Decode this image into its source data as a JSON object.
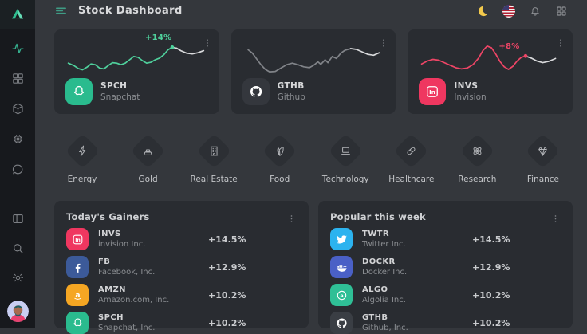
{
  "header": {
    "title": "Stock Dashboard",
    "menu_icon": "menu",
    "theme_icon": "moon",
    "language_icon": "us-flag",
    "notifications_icon": "bell",
    "apps_icon": "apps"
  },
  "sidebar": {
    "logo_icon": "logo-triangle",
    "top_icons": [
      "activity",
      "grid",
      "cube",
      "chip",
      "chat"
    ],
    "active_icon": "activity",
    "bottom_icons": [
      "layout",
      "search",
      "settings"
    ],
    "avatar_icon": "avatar"
  },
  "colors": {
    "background": "#34373c",
    "sidebar": "#17191d",
    "card": "#292c31",
    "accent_green": "#2abb8e",
    "accent_pink": "#ef3760",
    "moon_yellow": "#f2c94c"
  },
  "stock_cards": [
    {
      "ticker": "SPCH",
      "name": "Snapchat",
      "change": "+14%",
      "icon": "snapchat",
      "icon_bg": "#2abb8e",
      "line_color": "#4fd09c",
      "tail_color": "#d9dadc",
      "split": 24,
      "sparkline": [
        [
          0.02,
          0.58
        ],
        [
          0.06,
          0.64
        ],
        [
          0.09,
          0.71
        ],
        [
          0.12,
          0.74
        ],
        [
          0.15,
          0.68
        ],
        [
          0.18,
          0.6
        ],
        [
          0.21,
          0.62
        ],
        [
          0.24,
          0.7
        ],
        [
          0.27,
          0.72
        ],
        [
          0.3,
          0.64
        ],
        [
          0.33,
          0.57
        ],
        [
          0.36,
          0.58
        ],
        [
          0.39,
          0.62
        ],
        [
          0.42,
          0.58
        ],
        [
          0.45,
          0.5
        ],
        [
          0.48,
          0.42
        ],
        [
          0.51,
          0.44
        ],
        [
          0.54,
          0.52
        ],
        [
          0.57,
          0.58
        ],
        [
          0.6,
          0.56
        ],
        [
          0.63,
          0.5
        ],
        [
          0.66,
          0.46
        ],
        [
          0.69,
          0.38
        ],
        [
          0.72,
          0.26
        ],
        [
          0.75,
          0.2
        ],
        [
          0.78,
          0.22
        ],
        [
          0.81,
          0.28
        ],
        [
          0.85,
          0.34
        ],
        [
          0.89,
          0.36
        ],
        [
          0.93,
          0.33
        ],
        [
          0.97,
          0.28
        ]
      ]
    },
    {
      "ticker": "GTHB",
      "name": "Github",
      "change": "",
      "icon": "github",
      "icon_bg": "#34373d",
      "line_color": "#808388",
      "tail_color": "#d9dadc",
      "split": 22,
      "sparkline": [
        [
          0.04,
          0.26
        ],
        [
          0.07,
          0.34
        ],
        [
          0.1,
          0.48
        ],
        [
          0.13,
          0.62
        ],
        [
          0.16,
          0.73
        ],
        [
          0.19,
          0.79
        ],
        [
          0.23,
          0.78
        ],
        [
          0.27,
          0.7
        ],
        [
          0.31,
          0.62
        ],
        [
          0.35,
          0.58
        ],
        [
          0.39,
          0.62
        ],
        [
          0.43,
          0.67
        ],
        [
          0.47,
          0.69
        ],
        [
          0.5,
          0.63
        ],
        [
          0.53,
          0.55
        ],
        [
          0.55,
          0.61
        ],
        [
          0.58,
          0.5
        ],
        [
          0.6,
          0.57
        ],
        [
          0.63,
          0.42
        ],
        [
          0.66,
          0.47
        ],
        [
          0.69,
          0.34
        ],
        [
          0.72,
          0.27
        ],
        [
          0.76,
          0.23
        ],
        [
          0.8,
          0.25
        ],
        [
          0.84,
          0.31
        ],
        [
          0.88,
          0.37
        ],
        [
          0.92,
          0.39
        ],
        [
          0.96,
          0.33
        ]
      ]
    },
    {
      "ticker": "INVS",
      "name": "Invision",
      "change": "+8%",
      "icon": "invision",
      "icon_bg": "#ef3760",
      "line_color": "#ef4566",
      "tail_color": "#d9dadc",
      "split": 21,
      "sparkline": [
        [
          0.02,
          0.6
        ],
        [
          0.06,
          0.53
        ],
        [
          0.1,
          0.49
        ],
        [
          0.14,
          0.51
        ],
        [
          0.18,
          0.57
        ],
        [
          0.22,
          0.63
        ],
        [
          0.26,
          0.69
        ],
        [
          0.3,
          0.72
        ],
        [
          0.34,
          0.7
        ],
        [
          0.38,
          0.62
        ],
        [
          0.42,
          0.46
        ],
        [
          0.45,
          0.28
        ],
        [
          0.48,
          0.17
        ],
        [
          0.51,
          0.21
        ],
        [
          0.54,
          0.36
        ],
        [
          0.57,
          0.54
        ],
        [
          0.6,
          0.67
        ],
        [
          0.63,
          0.73
        ],
        [
          0.66,
          0.66
        ],
        [
          0.69,
          0.53
        ],
        [
          0.72,
          0.44
        ],
        [
          0.75,
          0.41
        ],
        [
          0.79,
          0.46
        ],
        [
          0.83,
          0.53
        ],
        [
          0.87,
          0.57
        ],
        [
          0.91,
          0.54
        ],
        [
          0.96,
          0.47
        ]
      ]
    }
  ],
  "categories": [
    {
      "label": "Energy",
      "icon": "energy"
    },
    {
      "label": "Gold",
      "icon": "gold"
    },
    {
      "label": "Real Estate",
      "icon": "realestate"
    },
    {
      "label": "Food",
      "icon": "food"
    },
    {
      "label": "Technology",
      "icon": "technology"
    },
    {
      "label": "Healthcare",
      "icon": "healthcare"
    },
    {
      "label": "Research",
      "icon": "research"
    },
    {
      "label": "Finance",
      "icon": "finance"
    }
  ],
  "panels": [
    {
      "title": "Today's Gainers",
      "kebab_icon": "kebab",
      "rows": [
        {
          "ticker": "INVS",
          "name": "invision Inc.",
          "change": "+14.5%",
          "icon": "invision",
          "icon_bg": "#ef3760"
        },
        {
          "ticker": "FB",
          "name": "Facebook, Inc.",
          "change": "+12.9%",
          "icon": "facebook",
          "icon_bg": "#3c5a99"
        },
        {
          "ticker": "AMZN",
          "name": "Amazon.com, Inc.",
          "change": "+10.2%",
          "icon": "amazon",
          "icon_bg": "#f5a623"
        },
        {
          "ticker": "SPCH",
          "name": "Snapchat, Inc.",
          "change": "+10.2%",
          "icon": "snapchat",
          "icon_bg": "#2abb8e"
        }
      ]
    },
    {
      "title": "Popular this week",
      "kebab_icon": "kebab",
      "rows": [
        {
          "ticker": "TWTR",
          "name": "Twitter Inc.",
          "change": "+14.5%",
          "icon": "twitter",
          "icon_bg": "#2cb3ef"
        },
        {
          "ticker": "DOCKR",
          "name": "Docker Inc.",
          "change": "+12.9%",
          "icon": "docker",
          "icon_bg": "#4a60c6"
        },
        {
          "ticker": "ALGO",
          "name": "Algolia Inc.",
          "change": "+10.2%",
          "icon": "algolia",
          "icon_bg": "#2fbf96"
        },
        {
          "ticker": "GTHB",
          "name": "Github, Inc.",
          "change": "+10.2%",
          "icon": "github",
          "icon_bg": "#3a3e44"
        }
      ]
    }
  ]
}
